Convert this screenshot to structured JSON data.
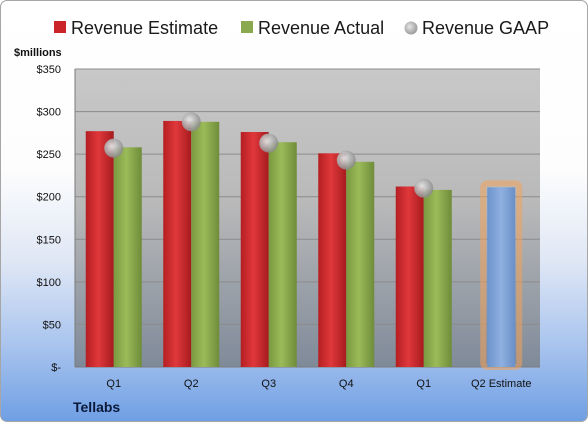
{
  "chart_data": {
    "type": "bar",
    "company": "Tellabs",
    "ylabel": "$millions",
    "ylim": [
      0,
      350
    ],
    "yticks": [
      0,
      50,
      100,
      150,
      200,
      250,
      300,
      350
    ],
    "ytick_labels": [
      "$-",
      "$50",
      "$100",
      "$150",
      "$200",
      "$250",
      "$300",
      "$350"
    ],
    "categories": [
      "Q1",
      "Q2",
      "Q3",
      "Q4",
      "Q1",
      "Q2 Estimate"
    ],
    "series": [
      {
        "name": "Revenue Estimate",
        "values": [
          277,
          289,
          276,
          251,
          212,
          null
        ],
        "color": "#cc2529"
      },
      {
        "name": "Revenue Actual",
        "values": [
          258,
          288,
          264,
          241,
          208,
          null
        ],
        "color": "#8aa84d"
      },
      {
        "name": "Revenue GAAP",
        "values": [
          257,
          288,
          263,
          243,
          210,
          null
        ],
        "color": "#a6a6a6"
      }
    ],
    "forecast": {
      "category": "Q2 Estimate",
      "value": 211,
      "color": "#7ea3d8",
      "glow": "#f2a35a"
    },
    "legend_position": "top",
    "grid": true
  }
}
